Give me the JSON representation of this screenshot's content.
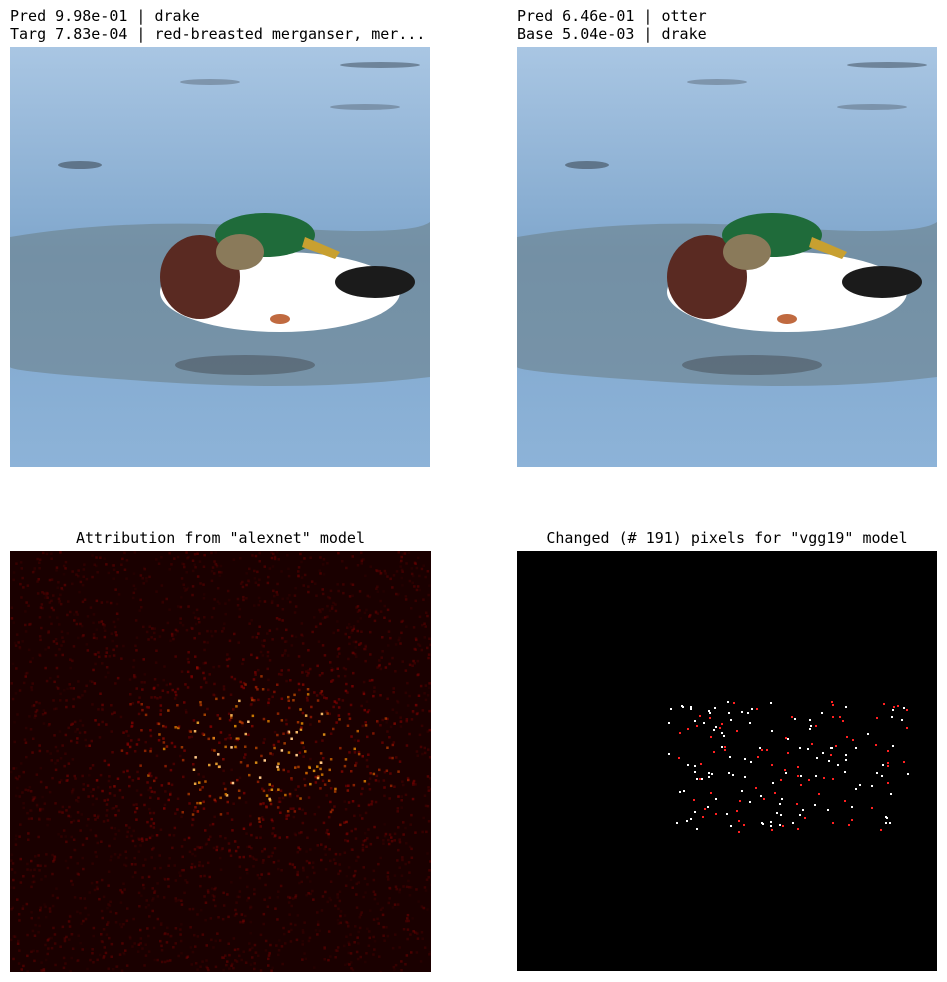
{
  "panels": {
    "top_left": {
      "line1": "Pred 9.98e-01 | drake",
      "line2": "Targ 7.83e-04 | red-breasted merganser, mer..."
    },
    "top_right": {
      "line1": "Pred 6.46e-01 | otter",
      "line2": "Base 5.04e-03 | drake"
    },
    "bottom_left": {
      "title": "Attribution from \"alexnet\" model"
    },
    "bottom_right": {
      "title": "Changed (# 191) pixels for \"vgg19\" model"
    }
  },
  "colors": {
    "water": "#7fa6cc",
    "water_light": "#a9c6e3",
    "attribution_bg": "#1a0000",
    "attribution_hot": "#ff6a00",
    "changed_bg": "#000000",
    "changed_pixel_white": "#ffffff",
    "changed_pixel_red": "#ff2020"
  }
}
